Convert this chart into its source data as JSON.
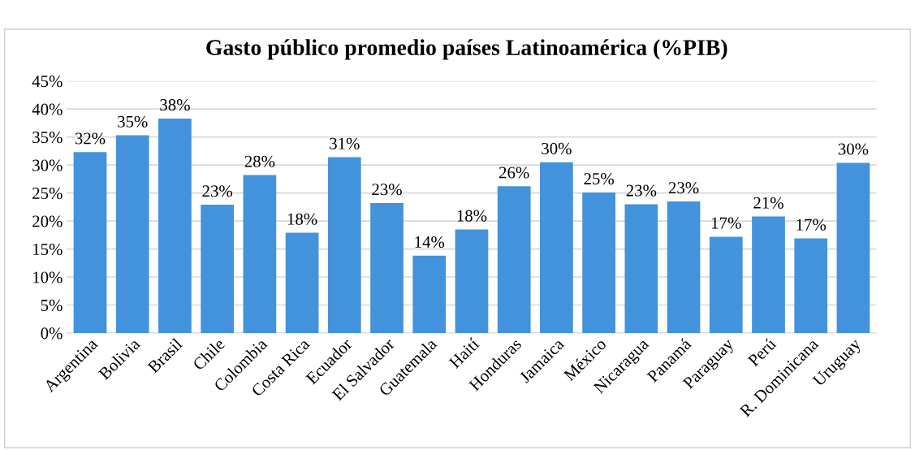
{
  "chart_data": {
    "type": "bar",
    "title": "Gasto público promedio países Latinoamérica (%PIB)",
    "categories": [
      "Argentina",
      "Bolivia",
      "Brasil",
      "Chile",
      "Colombia",
      "Costa Rica",
      "Ecuador",
      "El Salvador",
      "Guatemala",
      "Haití",
      "Honduras",
      "Jamaica",
      "México",
      "Nicaragua",
      "Panamá",
      "Paraguay",
      "Perú",
      "R. Dominicana",
      "Uruguay"
    ],
    "values": [
      32.3,
      35.3,
      38.3,
      22.9,
      28.2,
      17.9,
      31.4,
      23.2,
      13.8,
      18.5,
      26.2,
      30.5,
      25.1,
      23.0,
      23.5,
      17.2,
      20.8,
      16.9,
      30.4
    ],
    "value_labels": [
      "32%",
      "35%",
      "38%",
      "23%",
      "28%",
      "18%",
      "31%",
      "23%",
      "14%",
      "18%",
      "26%",
      "30%",
      "25%",
      "23%",
      "23%",
      "17%",
      "21%",
      "17%",
      "30%"
    ],
    "color": "#4393dc",
    "ylim": [
      0,
      45
    ],
    "yticks": [
      {
        "value": 0,
        "label": "0%"
      },
      {
        "value": 5,
        "label": "5%"
      },
      {
        "value": 10,
        "label": "10%"
      },
      {
        "value": 15,
        "label": "15%"
      },
      {
        "value": 20,
        "label": "20%"
      },
      {
        "value": 25,
        "label": "25%"
      },
      {
        "value": 30,
        "label": "30%"
      },
      {
        "value": 35,
        "label": "35%"
      },
      {
        "value": 40,
        "label": "40%"
      },
      {
        "value": 45,
        "label": "45%"
      }
    ],
    "grid": "y"
  }
}
